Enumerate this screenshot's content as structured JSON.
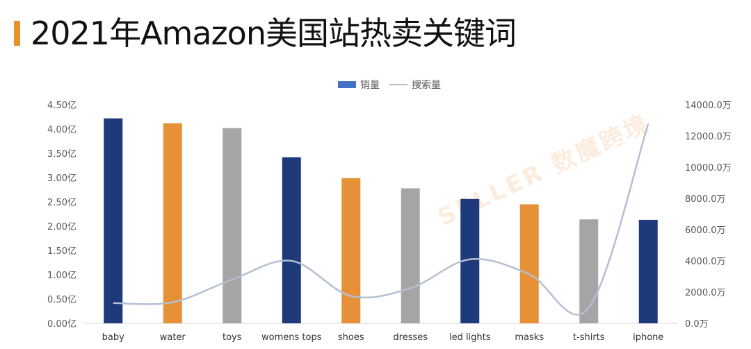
{
  "title": "2021年Amazon美国站热卖关键词",
  "watermark": "SELLER 数魔跨境",
  "colors": {
    "navy": "#1f3a7a",
    "orange": "#e69138",
    "gray": "#a5a5a5",
    "line": "#b3bfd3",
    "accent": "#e8902a",
    "legend_bar": "#4472c4"
  },
  "chart_data": {
    "type": "bar",
    "categories": [
      "baby",
      "water",
      "toys",
      "womens tops",
      "shoes",
      "dresses",
      "led lights",
      "masks",
      "t-shirts",
      "iphone"
    ],
    "series": [
      {
        "name": "销量",
        "type": "bar",
        "axis": "left",
        "values": [
          4.22,
          4.12,
          4.02,
          3.42,
          2.99,
          2.78,
          2.56,
          2.45,
          2.14,
          2.13
        ],
        "bar_colors": [
          "navy",
          "orange",
          "gray",
          "navy",
          "orange",
          "gray",
          "navy",
          "orange",
          "gray",
          "navy"
        ]
      },
      {
        "name": "搜索量",
        "type": "line",
        "axis": "right",
        "smooth": true,
        "values": [
          1300,
          1350,
          2800,
          4000,
          1750,
          2250,
          4100,
          3150,
          1000,
          12800
        ]
      }
    ],
    "y_left": {
      "ylim": [
        0,
        4.5
      ],
      "ticks": [
        "0.00亿",
        "0.50亿",
        "1.00亿",
        "1.50亿",
        "2.00亿",
        "2.50亿",
        "3.00亿",
        "3.50亿",
        "4.00亿",
        "4.50亿"
      ]
    },
    "y_right": {
      "ylim": [
        0,
        14000
      ],
      "ticks": [
        "0.0万",
        "2000.0万",
        "4000.0万",
        "6000.0万",
        "8000.0万",
        "10000.0万",
        "12000.0万",
        "14000.0万"
      ]
    },
    "legend_position": "top-center",
    "grid": false
  }
}
